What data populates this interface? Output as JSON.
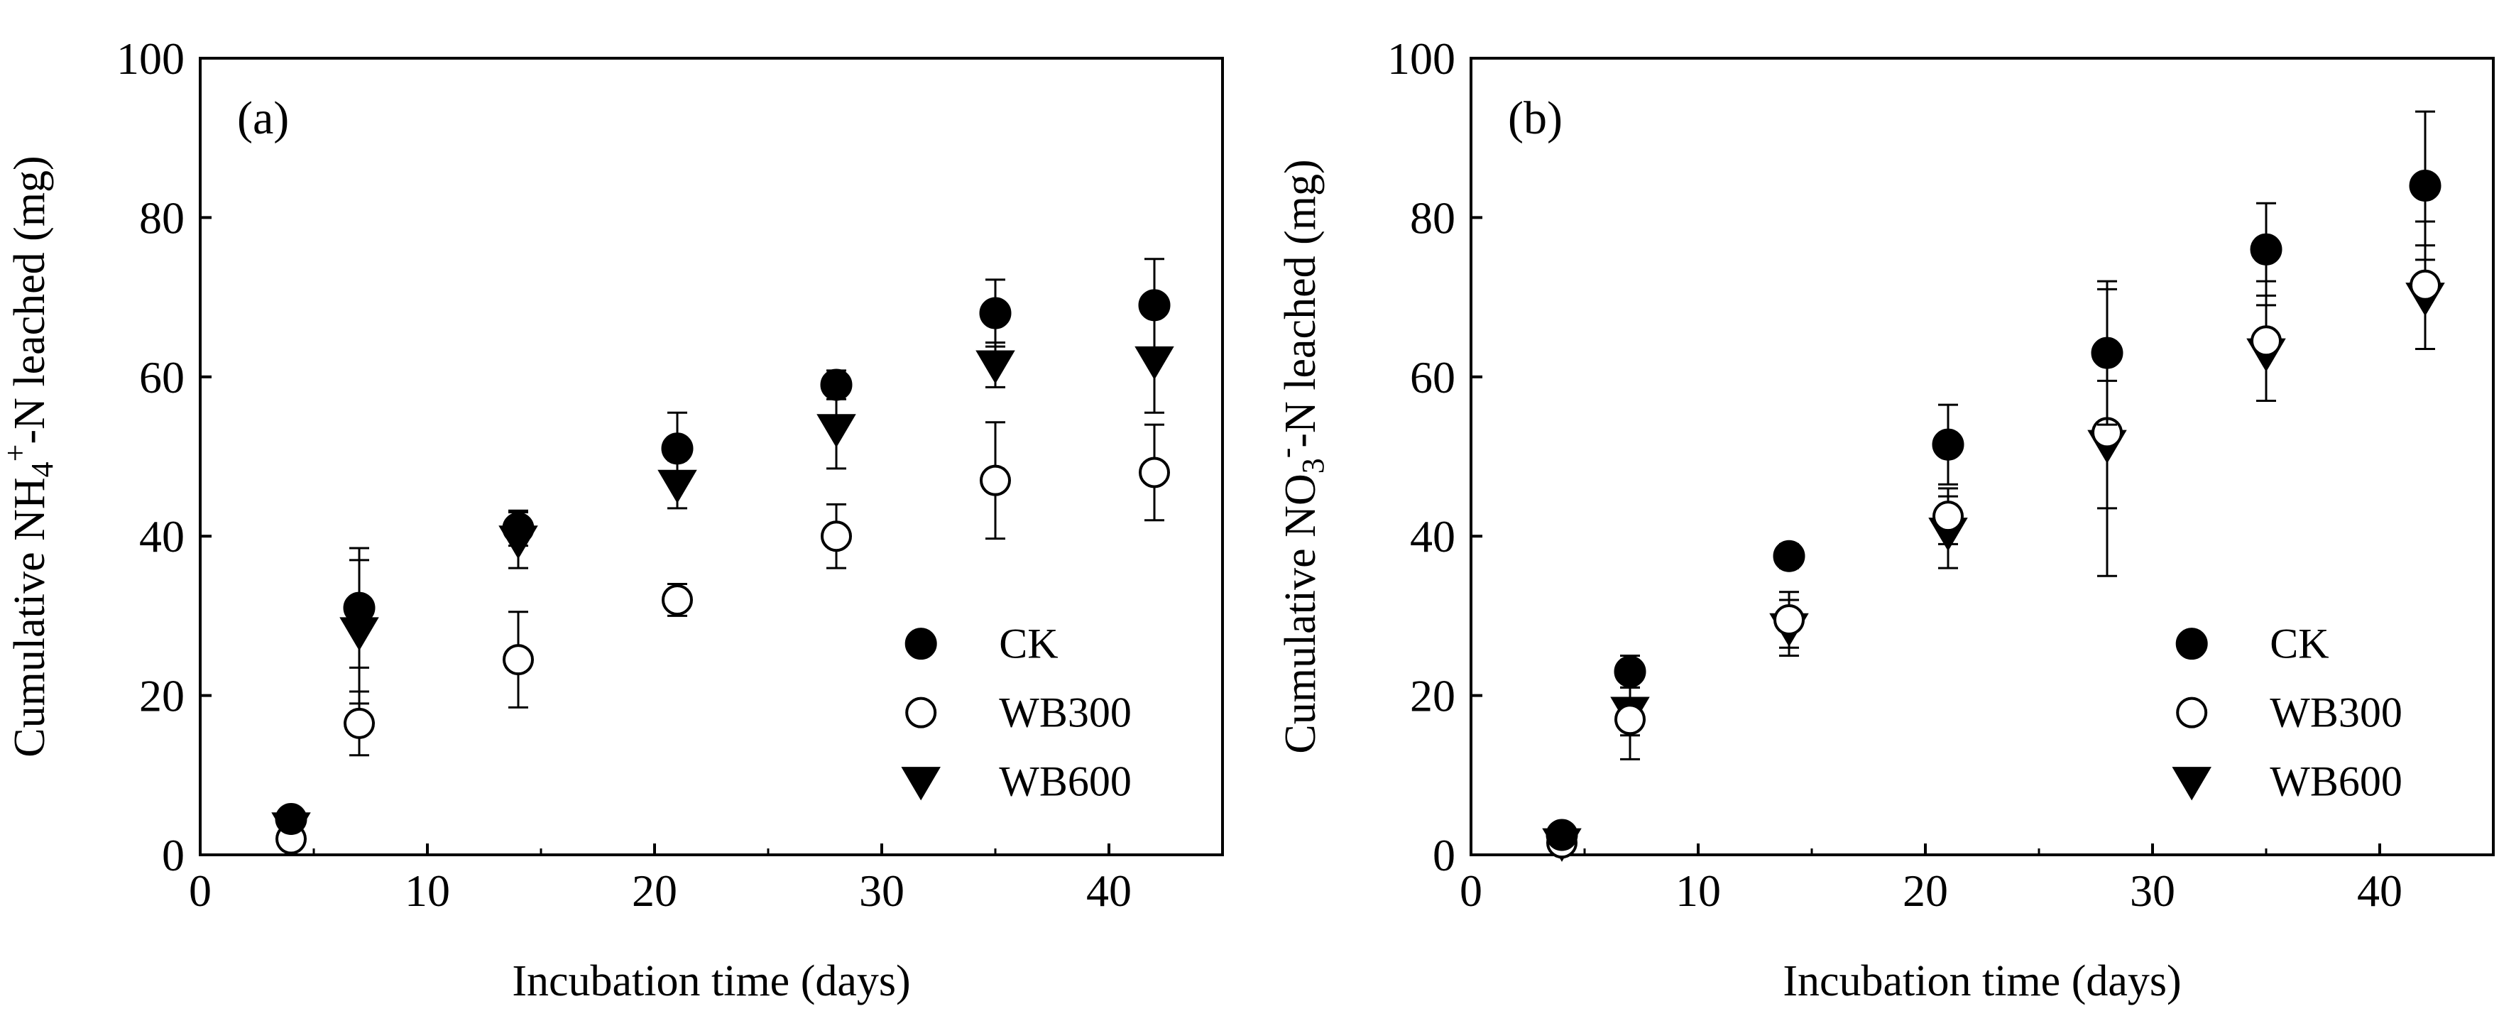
{
  "chart_data": [
    {
      "type": "scatter",
      "panel_label": "(a)",
      "xlabel": "Incubation time (days)",
      "ylabel": {
        "pre": "Cumulative NH",
        "sub": "4",
        "sup": "+",
        "post": "-N leached (mg)"
      },
      "xlim": [
        0,
        45
      ],
      "ylim": [
        0,
        100
      ],
      "xticks": [
        "0",
        "10",
        "20",
        "30",
        "40"
      ],
      "yticks": [
        "0",
        "20",
        "40",
        "60",
        "80",
        "100"
      ],
      "x": [
        4,
        7,
        14,
        21,
        28,
        35,
        42
      ],
      "series": [
        {
          "name": "CK",
          "marker": "filled-circle",
          "values": [
            4.5,
            31,
            41,
            51,
            59,
            68,
            69
          ],
          "errors": [
            0.6,
            7.5,
            2.2,
            4.5,
            1.8,
            4.2,
            5.8
          ]
        },
        {
          "name": "WB300",
          "marker": "open-circle",
          "values": [
            2,
            16.5,
            24.5,
            32,
            40,
            47,
            48
          ],
          "errors": [
            0.6,
            4,
            6,
            2,
            4,
            7.3,
            6
          ]
        },
        {
          "name": "WB600",
          "marker": "filled-triangle-down",
          "values": [
            3.5,
            28,
            39.5,
            46.5,
            53.5,
            61.5,
            62
          ],
          "errors": [
            0.5,
            9,
            3.5,
            3,
            5,
            2.8,
            6.5
          ]
        }
      ],
      "legend": [
        "CK",
        "WB300",
        "WB600"
      ],
      "legend_position": "bottom-right"
    },
    {
      "type": "scatter",
      "panel_label": "(b)",
      "xlabel": "Incubation time (days)",
      "ylabel": {
        "pre": "Cumulative NO",
        "sub": "3",
        "sup": "-",
        "post": "-N leached (mg)"
      },
      "xlim": [
        0,
        45
      ],
      "ylim": [
        0,
        100
      ],
      "xticks": [
        "0",
        "10",
        "20",
        "30",
        "40"
      ],
      "yticks": [
        "0",
        "20",
        "40",
        "60",
        "80",
        "100"
      ],
      "x": [
        4,
        7,
        14,
        21,
        28,
        35,
        42
      ],
      "series": [
        {
          "name": "CK",
          "marker": "filled-circle",
          "values": [
            2.5,
            23,
            37.5,
            51.5,
            63,
            76,
            84
          ],
          "errors": [
            0.6,
            2,
            1.5,
            5,
            9,
            5.8,
            9.3
          ]
        },
        {
          "name": "WB300",
          "marker": "open-circle",
          "values": [
            1.5,
            17,
            29.5,
            42.5,
            53,
            64.5,
            71.5
          ],
          "errors": [
            0.6,
            5,
            3.5,
            3.5,
            18,
            7.5,
            8
          ]
        },
        {
          "name": "WB600",
          "marker": "filled-triangle-down",
          "values": [
            1.5,
            18,
            28.5,
            40.5,
            51.5,
            63,
            70
          ],
          "errors": [
            0.5,
            3,
            3.5,
            4.5,
            8,
            6,
            6.5
          ]
        }
      ],
      "legend": [
        "CK",
        "WB300",
        "WB600"
      ],
      "legend_position": "bottom-right"
    }
  ]
}
